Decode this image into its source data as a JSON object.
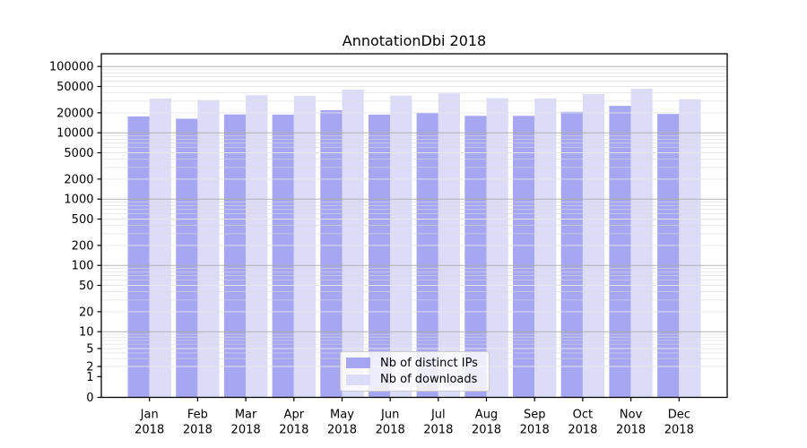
{
  "chart_data": {
    "type": "bar",
    "title": "AnnotationDbi 2018",
    "categories": [
      "Jan 2018",
      "Feb 2018",
      "Mar 2018",
      "Apr 2018",
      "May 2018",
      "Jun 2018",
      "Jul 2018",
      "Aug 2018",
      "Sep 2018",
      "Oct 2018",
      "Nov 2018",
      "Dec 2018"
    ],
    "series": [
      {
        "name": "Nb of distinct IPs",
        "color": "#a6a6f2",
        "values": [
          17600,
          16300,
          18900,
          18800,
          21900,
          18800,
          20200,
          18000,
          18000,
          20700,
          25400,
          19200
        ]
      },
      {
        "name": "Nb of downloads",
        "color": "#dcdcf9",
        "values": [
          32900,
          31100,
          36800,
          36100,
          44800,
          36300,
          39300,
          33100,
          33000,
          38400,
          46200,
          32100
        ]
      }
    ],
    "xlabel": "",
    "ylabel": "",
    "y_tick_labels": [
      "0",
      "1",
      "2",
      "5",
      "10",
      "20",
      "50",
      "100",
      "200",
      "500",
      "1000",
      "2000",
      "5000",
      "10000",
      "20000",
      "50000",
      "100000"
    ],
    "y_tick_values": [
      0,
      1,
      2,
      5,
      10,
      20,
      50,
      100,
      200,
      500,
      1000,
      2000,
      5000,
      10000,
      20000,
      50000,
      100000
    ],
    "yscale": "log-like (custom compressed segment below 10, log above)",
    "ylim": [
      0,
      150000
    ],
    "grid": true,
    "grid_major_color": "#ababab",
    "grid_minor_color": "#e6e6e6",
    "axis_color": "#000000",
    "legend_position": "inside lower-center",
    "background_color": "#ffffff"
  }
}
